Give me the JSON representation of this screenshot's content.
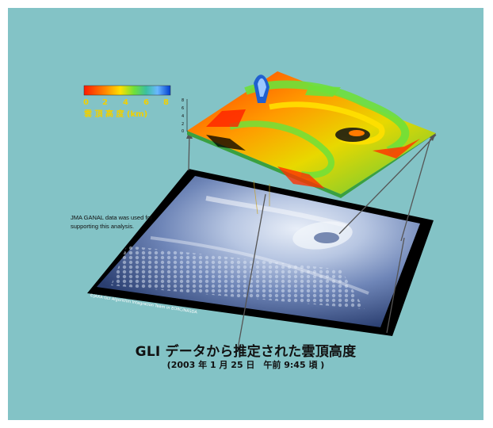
{
  "colorbar": {
    "ticks": [
      "0",
      "2",
      "4",
      "6",
      "8"
    ],
    "label": "雲 頂 高 度 (km)",
    "colors": [
      "#ff1a00",
      "#ff8a00",
      "#ffe000",
      "#6ee03a",
      "#3ac0a0",
      "#6ab8ff",
      "#0040d0"
    ]
  },
  "z_axis": {
    "ticks": [
      "8",
      "6",
      "4",
      "2",
      "0"
    ]
  },
  "note": {
    "line1": "JMA GANAL data was used for",
    "line2": "supporting this analysis."
  },
  "credit": "©JAXA  GLI Algorithm Integration Team in EORC/NASDA",
  "title": {
    "main": "GLI データから推定された雲頂高度",
    "sub": "(2003 年 1 月 25 日　午前 9:45 頃 )"
  },
  "colors": {
    "background": "#83c3c6",
    "frame": "#ffffff",
    "satellite_plane": "#000000"
  }
}
